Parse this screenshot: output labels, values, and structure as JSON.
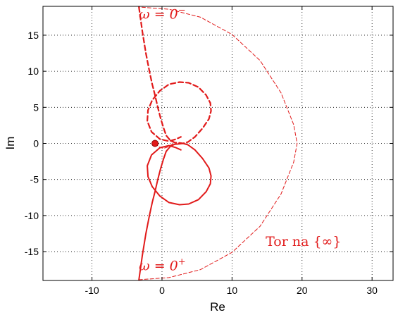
{
  "chart_data": {
    "type": "line",
    "title": "",
    "xlabel": "Re",
    "ylabel": "Im",
    "xlim": [
      -17,
      33
    ],
    "ylim": [
      -19,
      19
    ],
    "xticks": [
      -10,
      0,
      10,
      20,
      30
    ],
    "yticks": [
      -15,
      -10,
      -5,
      0,
      5,
      10,
      15
    ],
    "xtick_labels": [
      "-10",
      "0",
      "10",
      "20",
      "30"
    ],
    "ytick_labels": [
      "-15",
      "-10",
      "-5",
      "0",
      "5",
      "10",
      "15"
    ],
    "grid": true,
    "color": "#e11a1a",
    "series": [
      {
        "style": "solid",
        "x": [
          -3.3,
          -2.8,
          -2.3,
          -1.8,
          -1.4,
          -1.0,
          -0.6,
          -0.2,
          0.2,
          0.6,
          1.2,
          1.8,
          2.4,
          3.0,
          3.7,
          4.7,
          5.8,
          6.7,
          7.0,
          6.9,
          6.3,
          5.2,
          3.8,
          2.5,
          1.0,
          -0.3,
          -1.4,
          -2.0,
          -2.1,
          -1.5,
          -0.3,
          1.0,
          2.0,
          2.7
        ],
        "y": [
          -18.9,
          -15.5,
          -12.5,
          -10.0,
          -8.2,
          -6.7,
          -5.0,
          -3.5,
          -2.2,
          -1.1,
          -0.4,
          -0.12,
          -0.08,
          0.0,
          -0.2,
          -0.9,
          -2.1,
          -3.4,
          -4.5,
          -5.6,
          -6.7,
          -7.8,
          -8.4,
          -8.5,
          -8.2,
          -7.3,
          -6.0,
          -4.6,
          -3.1,
          -1.6,
          -0.6,
          -0.3,
          -0.6,
          -0.9
        ]
      },
      {
        "style": "dashed",
        "x": [
          -3.3,
          -2.8,
          -2.3,
          -1.8,
          -1.4,
          -1.0,
          -0.6,
          -0.2,
          0.2,
          0.6,
          1.2,
          1.8,
          2.4,
          3.0,
          3.7,
          4.7,
          5.8,
          6.7,
          7.0,
          6.9,
          6.3,
          5.2,
          3.8,
          2.5,
          1.0,
          -0.3,
          -1.4,
          -2.0,
          -2.1,
          -1.5,
          -0.3,
          1.0,
          2.0,
          2.7
        ],
        "y": [
          18.9,
          15.5,
          12.5,
          10.0,
          8.2,
          6.7,
          5.0,
          3.5,
          2.2,
          1.1,
          0.4,
          0.12,
          0.08,
          0.0,
          0.2,
          0.9,
          2.1,
          3.4,
          4.5,
          5.6,
          6.7,
          7.8,
          8.4,
          8.5,
          8.2,
          7.3,
          6.0,
          4.6,
          3.1,
          1.6,
          0.6,
          0.3,
          0.6,
          0.9
        ]
      },
      {
        "style": "thin-dashed",
        "x": [
          -3.3,
          1.0,
          5.5,
          10.0,
          14.0,
          17.0,
          18.8,
          19.3,
          18.8,
          17.0,
          14.0,
          10.0,
          5.5,
          1.0,
          -3.3
        ],
        "y": [
          -18.9,
          -18.6,
          -17.5,
          -15.1,
          -11.5,
          -7.0,
          -2.6,
          0.0,
          2.6,
          7.0,
          11.5,
          15.1,
          17.5,
          18.6,
          18.9
        ]
      },
      {
        "style": "thin-dashed",
        "x": [
          -1.0,
          -0.4,
          0.2,
          0.8,
          1.3,
          1.8
        ],
        "y": [
          0.0,
          -0.5,
          -0.7,
          -0.5,
          -0.2,
          0.0
        ]
      }
    ],
    "points": [
      {
        "x": -1.0,
        "y": 0.0,
        "marker": "circle"
      }
    ],
    "annotations": [
      {
        "text": "ω = 0",
        "superscript": "−",
        "x": -3.3,
        "y": 17.3
      },
      {
        "text": "ω = 0",
        "superscript": "+",
        "x": -3.3,
        "y": -17.6
      },
      {
        "text": "Tor na {∞}",
        "x": 14.8,
        "y": -14.2
      }
    ]
  }
}
